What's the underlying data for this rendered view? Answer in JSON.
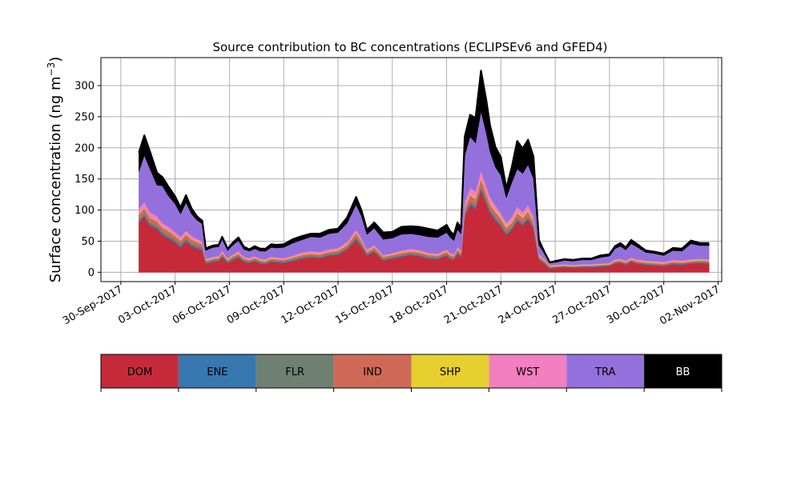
{
  "chart_data": {
    "type": "area",
    "title": "Source contribution to BC concentrations (ECLIPSEv6 and GFED4)",
    "ylabel": "Surface concentration (ng m",
    "ylabel_sup": "−3",
    "ylabel_close": ")",
    "xlabel": "",
    "stacked": true,
    "grid": true,
    "ylim": [
      -15,
      345
    ],
    "yticks": [
      0,
      50,
      100,
      150,
      200,
      250,
      300
    ],
    "xlim_days": [
      -1.1,
      33.2
    ],
    "xtick_labels": [
      "30-Sep-2017",
      "03-Oct-2017",
      "06-Oct-2017",
      "09-Oct-2017",
      "12-Oct-2017",
      "15-Oct-2017",
      "18-Oct-2017",
      "21-Oct-2017",
      "24-Oct-2017",
      "27-Oct-2017",
      "30-Oct-2017",
      "02-Nov-2017"
    ],
    "xtick_days": [
      0,
      3,
      6,
      9,
      12,
      15,
      18,
      21,
      24,
      27,
      30,
      33
    ],
    "x": [
      1.0,
      1.3,
      1.6,
      2.0,
      2.3,
      2.6,
      3.0,
      3.3,
      3.6,
      3.9,
      4.2,
      4.5,
      4.7,
      4.9,
      5.1,
      5.4,
      5.6,
      5.9,
      6.2,
      6.5,
      6.8,
      7.1,
      7.4,
      7.7,
      8.0,
      8.3,
      8.6,
      9.0,
      9.5,
      10.0,
      10.5,
      11.0,
      11.5,
      12.0,
      12.5,
      13.0,
      13.3,
      13.6,
      14.0,
      14.5,
      15.0,
      15.5,
      16.0,
      16.5,
      17.0,
      17.5,
      18.0,
      18.2,
      18.4,
      18.6,
      18.8,
      19.0,
      19.3,
      19.6,
      19.9,
      20.2,
      20.4,
      20.7,
      21.0,
      21.3,
      21.6,
      21.9,
      22.2,
      22.5,
      22.8,
      23.1,
      23.4,
      23.7,
      24.0,
      24.5,
      25.0,
      25.5,
      26.0,
      26.5,
      27.0,
      27.3,
      27.6,
      27.9,
      28.2,
      28.5,
      29.0,
      29.5,
      30.0,
      30.5,
      31.0,
      31.5,
      32.0,
      32.5
    ],
    "series": [
      {
        "name": "DOM",
        "color": "#c62a3a",
        "values": [
          80,
          90,
          75,
          70,
          60,
          55,
          48,
          40,
          50,
          42,
          38,
          35,
          14,
          15,
          17,
          18,
          25,
          15,
          20,
          24,
          17,
          15,
          18,
          14,
          13,
          17,
          16,
          15,
          18,
          22,
          24,
          23,
          27,
          28,
          37,
          52,
          40,
          27,
          33,
          19,
          22,
          25,
          28,
          26,
          22,
          21,
          27,
          22,
          20,
          30,
          25,
          90,
          108,
          102,
          132,
          110,
          95,
          83,
          74,
          60,
          68,
          83,
          75,
          85,
          70,
          20,
          14,
          6,
          7,
          8,
          7,
          8,
          8,
          9,
          10,
          14,
          15,
          12,
          17,
          14,
          12,
          11,
          10,
          13,
          12,
          14,
          15,
          14
        ]
      },
      {
        "name": "ENE",
        "color": "#3778b0",
        "values": [
          2,
          2,
          2,
          2,
          2,
          2,
          2,
          2,
          2,
          2,
          2,
          2,
          1,
          1,
          1,
          1,
          1,
          1,
          1,
          1,
          1,
          1,
          1,
          1,
          1,
          1,
          1,
          1,
          1,
          1,
          1,
          1,
          1,
          1,
          1,
          2,
          2,
          1,
          1,
          1,
          1,
          1,
          1,
          1,
          1,
          1,
          1,
          1,
          1,
          1,
          1,
          2,
          3,
          3,
          3,
          3,
          3,
          3,
          2,
          2,
          2,
          2,
          2,
          2,
          2,
          1,
          1,
          1,
          1,
          1,
          1,
          1,
          1,
          1,
          1,
          1,
          1,
          1,
          1,
          1,
          1,
          1,
          1,
          1,
          1,
          1,
          1,
          1
        ]
      },
      {
        "name": "FLR",
        "color": "#6e8072",
        "values": [
          3,
          3,
          3,
          3,
          3,
          3,
          3,
          3,
          3,
          3,
          3,
          3,
          2,
          2,
          2,
          2,
          2,
          2,
          2,
          2,
          2,
          2,
          2,
          2,
          2,
          2,
          2,
          2,
          2,
          2,
          2,
          2,
          2,
          2,
          2,
          3,
          3,
          2,
          2,
          2,
          2,
          2,
          2,
          2,
          2,
          2,
          2,
          2,
          2,
          2,
          2,
          3,
          3,
          3,
          3,
          3,
          3,
          3,
          3,
          3,
          3,
          3,
          3,
          3,
          3,
          2,
          2,
          1,
          1,
          1,
          1,
          1,
          1,
          1,
          1,
          1,
          1,
          1,
          1,
          1,
          1,
          1,
          1,
          1,
          1,
          1,
          1,
          1
        ]
      },
      {
        "name": "IND",
        "color": "#cf6a58",
        "values": [
          8,
          8,
          8,
          7,
          7,
          7,
          6,
          6,
          6,
          6,
          6,
          5,
          2,
          2,
          2,
          2,
          3,
          2,
          3,
          3,
          2,
          2,
          2,
          2,
          2,
          2,
          2,
          2,
          3,
          3,
          3,
          3,
          3,
          4,
          4,
          6,
          5,
          3,
          4,
          3,
          3,
          3,
          3,
          3,
          3,
          3,
          3,
          3,
          3,
          4,
          3,
          8,
          10,
          10,
          12,
          10,
          9,
          8,
          8,
          7,
          7,
          8,
          8,
          8,
          7,
          3,
          2,
          1,
          1,
          1,
          1,
          1,
          1,
          1,
          1,
          2,
          2,
          2,
          2,
          2,
          2,
          2,
          2,
          2,
          2,
          2,
          2,
          2
        ]
      },
      {
        "name": "SHP",
        "color": "#e6cf2e",
        "values": [
          1,
          1,
          1,
          1,
          1,
          1,
          1,
          1,
          1,
          1,
          1,
          1,
          1,
          1,
          1,
          1,
          1,
          1,
          1,
          1,
          1,
          1,
          1,
          1,
          1,
          1,
          1,
          1,
          1,
          1,
          1,
          1,
          1,
          1,
          1,
          1,
          1,
          1,
          1,
          1,
          1,
          1,
          1,
          1,
          1,
          1,
          1,
          1,
          1,
          1,
          1,
          2,
          2,
          2,
          2,
          2,
          2,
          2,
          2,
          2,
          2,
          2,
          2,
          2,
          2,
          1,
          1,
          1,
          1,
          1,
          1,
          1,
          1,
          1,
          1,
          1,
          1,
          1,
          1,
          1,
          1,
          1,
          1,
          1,
          1,
          1,
          1,
          1
        ]
      },
      {
        "name": "WST",
        "color": "#f27fbf",
        "values": [
          8,
          9,
          8,
          7,
          6,
          6,
          5,
          5,
          5,
          5,
          4,
          4,
          2,
          2,
          2,
          2,
          3,
          2,
          2,
          3,
          2,
          2,
          2,
          2,
          2,
          2,
          2,
          2,
          2,
          3,
          3,
          3,
          3,
          3,
          4,
          5,
          4,
          3,
          3,
          2,
          2,
          3,
          3,
          3,
          2,
          2,
          3,
          2,
          2,
          3,
          3,
          8,
          10,
          10,
          12,
          10,
          9,
          8,
          7,
          6,
          7,
          8,
          7,
          8,
          7,
          2,
          2,
          1,
          1,
          1,
          1,
          1,
          1,
          1,
          1,
          2,
          2,
          2,
          2,
          2,
          2,
          2,
          2,
          2,
          2,
          2,
          2,
          2
        ]
      },
      {
        "name": "TRA",
        "color": "#9470dc",
        "values": [
          60,
          75,
          70,
          50,
          60,
          50,
          45,
          37,
          45,
          35,
          30,
          28,
          13,
          15,
          15,
          15,
          18,
          12,
          15,
          17,
          12,
          11,
          12,
          12,
          13,
          15,
          15,
          17,
          20,
          20,
          23,
          23,
          25,
          25,
          30,
          40,
          35,
          24,
          27,
          25,
          24,
          26,
          24,
          24,
          26,
          26,
          27,
          25,
          22,
          28,
          27,
          75,
          82,
          78,
          95,
          85,
          73,
          62,
          60,
          40,
          55,
          60,
          62,
          65,
          60,
          15,
          8,
          4,
          4,
          6,
          6,
          7,
          7,
          10,
          11,
          17,
          20,
          17,
          22,
          20,
          13,
          12,
          10,
          15,
          15,
          25,
          21,
          22
        ]
      },
      {
        "name": "BB",
        "color": "#000000",
        "values": [
          30,
          32,
          28,
          20,
          14,
          15,
          12,
          10,
          12,
          9,
          6,
          5,
          3,
          3,
          3,
          3,
          4,
          3,
          4,
          5,
          4,
          3,
          4,
          4,
          4,
          5,
          5,
          5,
          6,
          6,
          5,
          6,
          6,
          6,
          9,
          12,
          9,
          7,
          9,
          11,
          10,
          12,
          12,
          13,
          13,
          11,
          12,
          10,
          9,
          11,
          9,
          30,
          35,
          40,
          65,
          52,
          42,
          32,
          29,
          15,
          25,
          45,
          40,
          40,
          35,
          8,
          3,
          1,
          2,
          2,
          2,
          2,
          2,
          3,
          3,
          4,
          5,
          4,
          6,
          5,
          3,
          3,
          3,
          4,
          4,
          5,
          4,
          4
        ]
      }
    ]
  }
}
